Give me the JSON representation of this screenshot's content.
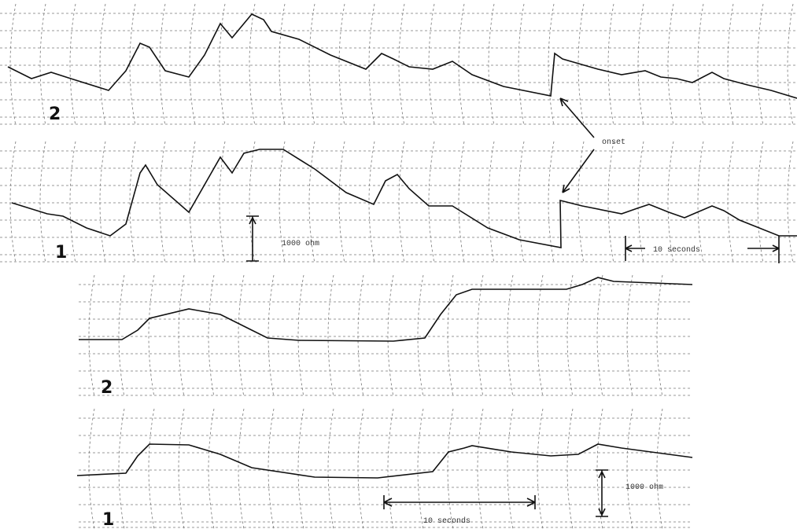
{
  "recording_top": {
    "trace_2_label": "2",
    "trace_1_label": "1",
    "onset_label": "onset",
    "scale_label": "1000 ohm",
    "time_label": "10 seconds"
  },
  "recording_bottom": {
    "trace_2_label": "2",
    "trace_1_label": "1",
    "scale_label": "1000 ohm",
    "time_label": "10 seconds"
  }
}
